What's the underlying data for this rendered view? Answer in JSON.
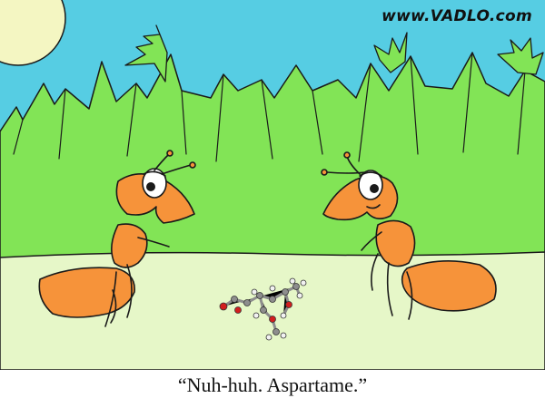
{
  "watermark": "www.VADLO.com",
  "caption": "“Nuh-huh. Aspartame.”",
  "colors": {
    "sky": "#56cde3",
    "sun": "#f4f6c2",
    "grass": "#82e456",
    "grass_shadow": "#6cd246",
    "ground": "#e6f7c8",
    "ant": "#f6933a",
    "molecule_carbon": "#8d8d8d",
    "molecule_oxygen": "#d21e1e",
    "molecule_hydrogen": "#f2f2f2"
  }
}
